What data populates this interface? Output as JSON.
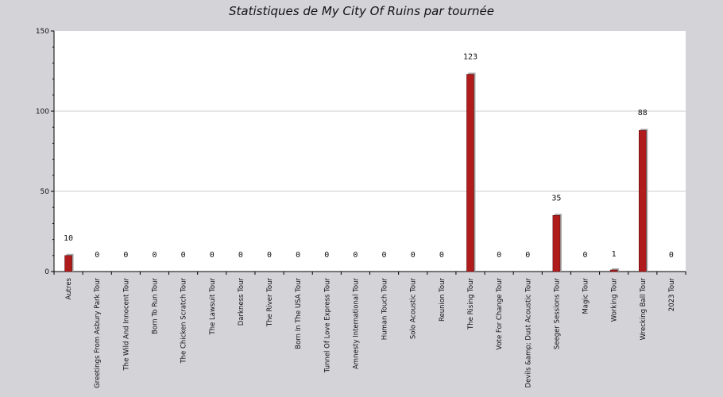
{
  "chart_data": {
    "type": "bar",
    "title": "Statistiques de My City Of Ruins par tournée",
    "xlabel": "",
    "ylabel": "",
    "ylim": [
      0,
      150
    ],
    "yticks": [
      0,
      50,
      100,
      150
    ],
    "grid": true,
    "categories": [
      "Autres",
      "Greetings From Asbury Park Tour",
      "The Wild And Innocent Tour",
      "Born To Run Tour",
      "The Chicken Scratch Tour",
      "The Lawsuit Tour",
      "Darkness Tour",
      "The River Tour",
      "Born In The USA Tour",
      "Tunnel Of Love Express Tour",
      "Amnesty International Tour",
      "Human Touch Tour",
      "Solo Acoustic Tour",
      "Reunion Tour",
      "The Rising Tour",
      "Vote For Change Tour",
      "Devils &amp; Dust Acoustic Tour",
      "Seeger Sessions Tour",
      "Magic Tour",
      "Working Tour",
      "Wrecking Ball Tour",
      "2023 Tour"
    ],
    "values": [
      10,
      0,
      0,
      0,
      0,
      0,
      0,
      0,
      0,
      0,
      0,
      0,
      0,
      0,
      123,
      0,
      0,
      35,
      0,
      1,
      88,
      0
    ],
    "colors": {
      "bar": "#b01c1c",
      "bar_shadow": "#a9a9a9",
      "plot_bg": "#ffffff",
      "page_bg": "#d4d3d8",
      "grid": "#cccccc"
    }
  }
}
